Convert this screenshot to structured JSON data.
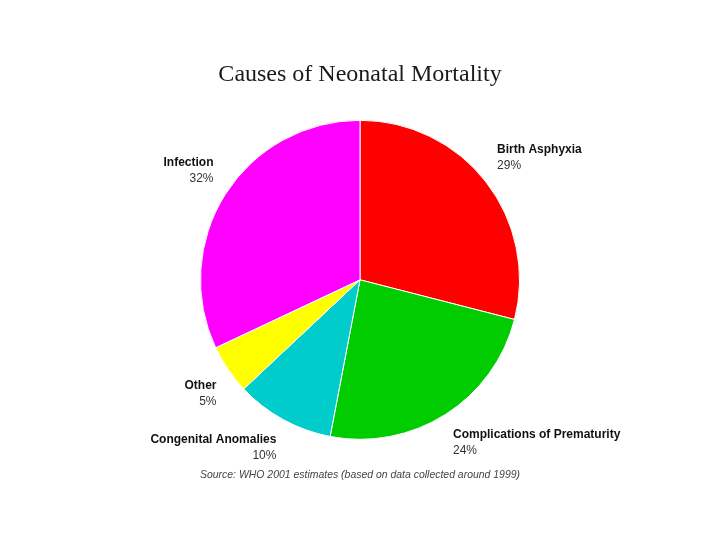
{
  "chart_data": {
    "type": "pie",
    "title": "Causes of Neonatal Mortality",
    "categories": [
      "Birth Asphyxia",
      "Complications of Prematurity",
      "Congenital Anomalies",
      "Other",
      "Infection"
    ],
    "values": [
      29,
      24,
      10,
      5,
      32
    ],
    "value_labels": [
      "29%",
      "24%",
      "10%",
      "5%",
      "32%"
    ],
    "colors": [
      "#ff0000",
      "#00cc00",
      "#00cccc",
      "#ffff00",
      "#ff00ff"
    ],
    "data_labels": true,
    "annotations": [
      "Source: WHO 2001 estimates (based on data collected around 1999)"
    ]
  }
}
